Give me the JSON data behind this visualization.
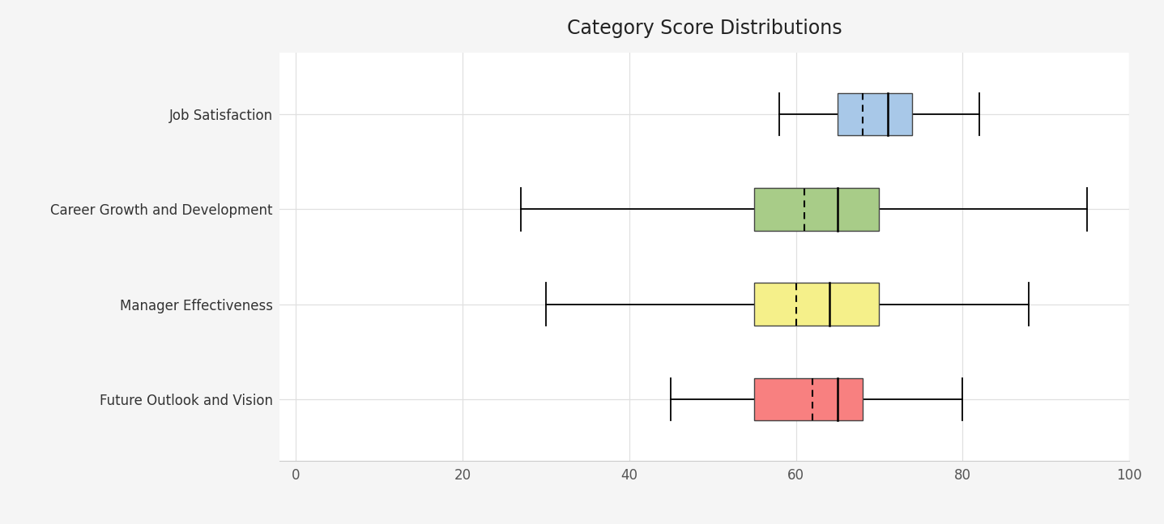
{
  "title": "Category Score Distributions",
  "categories": [
    "Job Satisfaction",
    "Career Growth and Development",
    "Manager Effectiveness",
    "Future Outlook and Vision"
  ],
  "colors": [
    "#a8c8e8",
    "#a8cc88",
    "#f5f08a",
    "#f88080"
  ],
  "xlim": [
    -2,
    100
  ],
  "xticks": [
    0,
    20,
    40,
    60,
    80,
    100
  ],
  "background_color": "#f7f7f7",
  "plot_bg_color": "#ffffff",
  "grid_color": "#e0e0e0",
  "boxes": [
    {
      "whisker_min": 58,
      "q1": 65,
      "median": 71,
      "mean": 68,
      "q3": 74,
      "whisker_max": 82
    },
    {
      "whisker_min": 27,
      "q1": 55,
      "median": 65,
      "mean": 61,
      "q3": 70,
      "whisker_max": 95
    },
    {
      "whisker_min": 30,
      "q1": 55,
      "median": 64,
      "mean": 60,
      "q3": 70,
      "whisker_max": 88
    },
    {
      "whisker_min": 45,
      "q1": 55,
      "median": 65,
      "mean": 62,
      "q3": 68,
      "whisker_max": 80
    }
  ],
  "title_fontsize": 17,
  "label_fontsize": 12,
  "tick_fontsize": 12
}
